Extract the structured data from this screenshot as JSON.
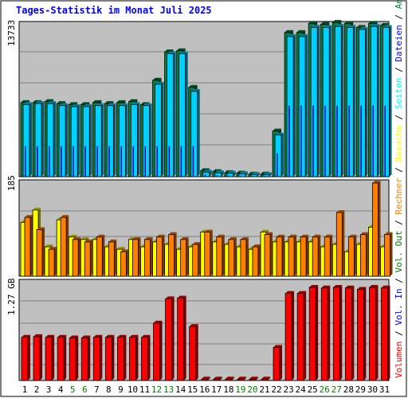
{
  "chart_data": [
    {
      "type": "bar",
      "panel": "top",
      "title": "Tages-Statistik im Monat Juli 2025",
      "y_tick_label": "13733",
      "ylim": [
        0,
        14500
      ],
      "categories": [
        "1",
        "2",
        "3",
        "4",
        "5",
        "6",
        "7",
        "8",
        "9",
        "10",
        "11",
        "12",
        "13",
        "14",
        "15",
        "16",
        "17",
        "18",
        "19",
        "20",
        "21",
        "22",
        "23",
        "24",
        "25",
        "26",
        "27",
        "28",
        "29",
        "30",
        "31"
      ],
      "series": [
        {
          "name": "Anfragen",
          "values": [
            7300,
            7300,
            7400,
            7200,
            7100,
            7100,
            7300,
            7200,
            7300,
            7400,
            7100,
            9500,
            12300,
            12400,
            8800,
            600,
            500,
            400,
            350,
            250,
            250,
            4500,
            14200,
            14200,
            15100,
            15000,
            15200,
            15100,
            14700,
            15100,
            14900
          ]
        },
        {
          "name": "Dateien",
          "values": [
            7100,
            7200,
            7200,
            7000,
            6900,
            6900,
            7000,
            7000,
            7000,
            7100,
            7000,
            9100,
            12100,
            12100,
            8400,
            450,
            380,
            330,
            280,
            200,
            200,
            4100,
            13800,
            13800,
            14700,
            14700,
            14800,
            14700,
            14500,
            14800,
            14700
          ]
        },
        {
          "name": "Seiten",
          "values": [
            3000,
            3000,
            3000,
            3000,
            3000,
            3000,
            3000,
            3000,
            3000,
            3000,
            3000,
            3000,
            3000,
            3000,
            3000,
            200,
            150,
            120,
            100,
            80,
            80,
            2300,
            7000,
            7000,
            7000,
            7000,
            7000,
            7000,
            7000,
            7000,
            7000
          ]
        }
      ]
    },
    {
      "type": "bar",
      "panel": "middle",
      "y_tick_label": "185",
      "ylim": [
        0,
        190
      ],
      "categories": [
        "1",
        "2",
        "3",
        "4",
        "5",
        "6",
        "7",
        "8",
        "9",
        "10",
        "11",
        "12",
        "13",
        "14",
        "15",
        "16",
        "17",
        "18",
        "19",
        "20",
        "21",
        "22",
        "23",
        "24",
        "25",
        "26",
        "27",
        "28",
        "29",
        "30",
        "31"
      ],
      "series": [
        {
          "name": "Besuche",
          "values": [
            110,
            135,
            60,
            115,
            80,
            75,
            75,
            60,
            55,
            75,
            60,
            70,
            65,
            55,
            60,
            90,
            70,
            65,
            60,
            55,
            90,
            70,
            70,
            70,
            70,
            60,
            65,
            50,
            65,
            100,
            60
          ]
        },
        {
          "name": "Rechner",
          "values": [
            120,
            95,
            55,
            120,
            75,
            70,
            80,
            70,
            50,
            75,
            75,
            80,
            85,
            75,
            65,
            90,
            80,
            75,
            75,
            60,
            85,
            80,
            80,
            80,
            80,
            80,
            130,
            80,
            85,
            190,
            85
          ]
        }
      ]
    },
    {
      "type": "bar",
      "panel": "bottom",
      "y_tick_label": "1.27 GB",
      "ylim": [
        0,
        1.45
      ],
      "categories": [
        "1",
        "2",
        "3",
        "4",
        "5",
        "6",
        "7",
        "8",
        "9",
        "10",
        "11",
        "12",
        "13",
        "14",
        "15",
        "16",
        "17",
        "18",
        "19",
        "20",
        "21",
        "22",
        "23",
        "24",
        "25",
        "26",
        "27",
        "28",
        "29",
        "30",
        "31"
      ],
      "series": [
        {
          "name": "Volumen",
          "values": [
            0.64,
            0.65,
            0.64,
            0.64,
            0.63,
            0.63,
            0.64,
            0.64,
            0.64,
            0.64,
            0.64,
            0.85,
            1.21,
            1.22,
            0.8,
            0.02,
            0.02,
            0.02,
            0.02,
            0.02,
            0.02,
            0.49,
            1.29,
            1.29,
            1.38,
            1.37,
            1.38,
            1.37,
            1.35,
            1.38,
            1.37
          ]
        }
      ],
      "right_legend": [
        {
          "text": "Volumen",
          "color": "#ff0000"
        },
        {
          "text": " / ",
          "color": "#000000"
        },
        {
          "text": "Vol. In",
          "color": "#0000ff"
        },
        {
          "text": " / ",
          "color": "#000000"
        },
        {
          "text": "Vol. Out",
          "color": "#008000"
        },
        {
          "text": " / ",
          "color": "#000000"
        },
        {
          "text": "Rechner",
          "color": "#ff8000"
        },
        {
          "text": " / ",
          "color": "#000000"
        },
        {
          "text": "Besuche",
          "color": "#ffff00"
        },
        {
          "text": " / ",
          "color": "#000000"
        },
        {
          "text": "Seiten",
          "color": "#00ffff"
        },
        {
          "text": " / ",
          "color": "#000000"
        },
        {
          "text": "Dateien",
          "color": "#0000ff"
        },
        {
          "text": " / ",
          "color": "#000000"
        },
        {
          "text": "Anfragen",
          "color": "#008040"
        }
      ],
      "weekend_days": [
        "5",
        "6",
        "12",
        "13",
        "19",
        "20",
        "26",
        "27"
      ]
    }
  ],
  "colors": {
    "background": "#c0c0c0",
    "grid": "#808080",
    "anfragen": "#008040",
    "dateien": "#00d0ff",
    "seiten": "#0000b0",
    "besuche": "#ffff00",
    "rechner": "#ff8000",
    "volumen": "#ff0000",
    "title": "#0000ff",
    "weekend_label": "#008000",
    "weekday_label": "#000000"
  }
}
